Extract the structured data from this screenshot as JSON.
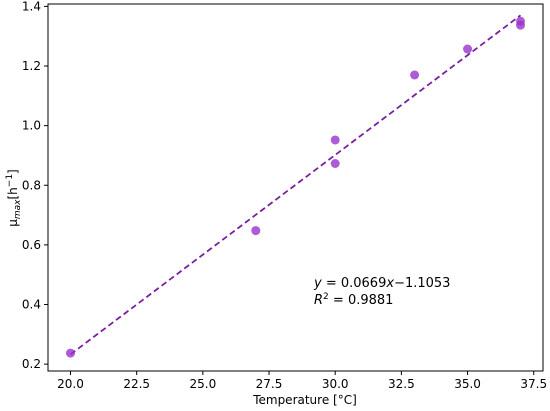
{
  "chart_data": {
    "type": "scatter",
    "xlabel": "Temperature [°C]",
    "ylabel": {
      "main": "μ",
      "sub": "max",
      "unit_open": "[h",
      "unit_sup": "−1",
      "unit_close": "]"
    },
    "xlim": [
      19.15,
      37.85
    ],
    "ylim": [
      0.177,
      1.408
    ],
    "grid": false,
    "x_ticks": [
      20.0,
      22.5,
      25.0,
      27.5,
      30.0,
      32.5,
      35.0,
      37.5
    ],
    "x_tick_labels": [
      "20.0",
      "22.5",
      "25.0",
      "27.5",
      "30.0",
      "32.5",
      "35.0",
      "37.5"
    ],
    "y_ticks": [
      0.2,
      0.4,
      0.6,
      0.8,
      1.0,
      1.2,
      1.4
    ],
    "y_tick_labels": [
      "0.2",
      "0.4",
      "0.6",
      "0.8",
      "1.0",
      "1.2",
      "1.4"
    ],
    "points": [
      {
        "x": 20,
        "y": 0.237
      },
      {
        "x": 27,
        "y": 0.648
      },
      {
        "x": 30,
        "y": 0.952
      },
      {
        "x": 30,
        "y": 0.873
      },
      {
        "x": 33,
        "y": 1.17
      },
      {
        "x": 35,
        "y": 1.257
      },
      {
        "x": 37,
        "y": 1.35
      },
      {
        "x": 37,
        "y": 1.337
      }
    ],
    "fit_line": {
      "slope": 0.0669,
      "intercept": -1.1053,
      "x_range": [
        20,
        37
      ]
    },
    "annotation": {
      "eq_prefix": "y",
      "eq_rest": " = 0.0669",
      "eq_var": "x",
      "eq_end": "−1.1053",
      "r2_prefix": "R",
      "r2_sup": "2",
      "r2_rest": " = 0.9881"
    },
    "colors": {
      "point": "#9932cc",
      "line": "#7b1fa2"
    }
  }
}
